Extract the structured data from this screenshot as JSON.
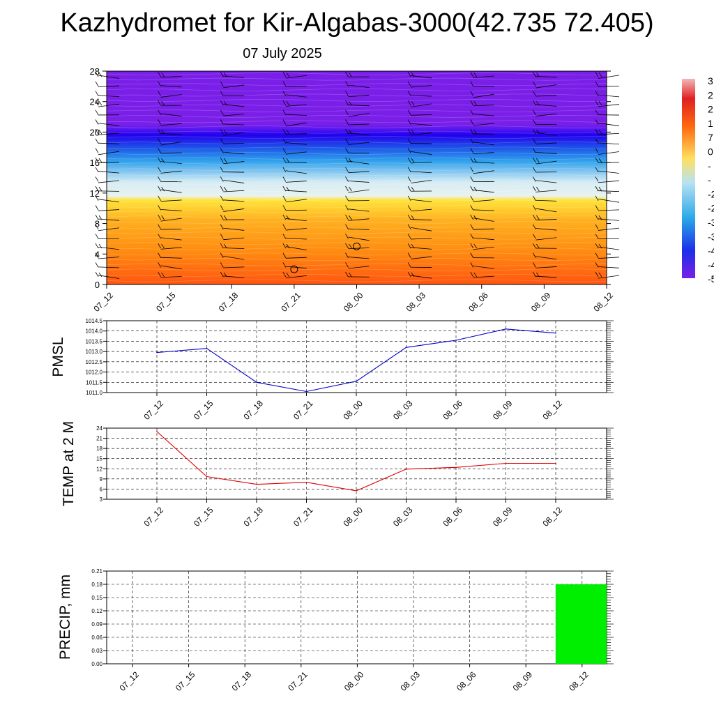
{
  "title": "Kazhydromet for Kir-Algabas-3000(42.735 72.405)",
  "subtitle": "07 July 2025",
  "colors": {
    "pmsl_line": "#0000cc",
    "temp_line": "#dd0000",
    "precip_bar": "#00ee00",
    "grid": "#000000"
  },
  "colorbar_labels": [
    "3",
    "2",
    "2",
    "1",
    "7",
    "0",
    "-",
    "-",
    "-2",
    "-2",
    "-3",
    "-3",
    "-4",
    "-4",
    "-5"
  ],
  "chart_data": [
    {
      "type": "heatmap",
      "title": "",
      "xlabel": "",
      "ylabel": "",
      "x_tick_labels": [
        "07_12",
        "07_15",
        "07_18",
        "07_21",
        "08_00",
        "08_03",
        "08_06",
        "08_09",
        "08_12"
      ],
      "y_tick_labels": [
        "0",
        "4",
        "8",
        "12",
        "16",
        "20",
        "24",
        "28"
      ],
      "ylim": [
        0,
        28
      ],
      "colorscale": [
        "#7a1fe8",
        "#2200ee",
        "#1e6fe8",
        "#2fb2ec",
        "#c8e6f4",
        "#ffe33a",
        "#ffb020",
        "#ff8a10",
        "#ff5510"
      ],
      "annotations": [
        {
          "text": "circle",
          "x": "07_21",
          "y": 2
        },
        {
          "text": "circle",
          "x": "08_00",
          "y": 5
        }
      ]
    },
    {
      "type": "line",
      "title": "",
      "ylabel": "PMSL",
      "categories": [
        "07_12",
        "07_15",
        "07_18",
        "07_21",
        "08_00",
        "08_03",
        "08_06",
        "08_09",
        "08_12"
      ],
      "series": [
        {
          "values": [
            1012.95,
            1013.15,
            1011.5,
            1011.05,
            1011.55,
            1013.2,
            1013.55,
            1014.1,
            1013.9
          ]
        }
      ],
      "ylim": [
        1011.0,
        1014.5
      ],
      "y_tick_labels": [
        "1011.0",
        "1011.5",
        "1012.0",
        "1012.5",
        "1013.0",
        "1013.5",
        "1014.0",
        "1014.5"
      ],
      "grid": true
    },
    {
      "type": "line",
      "title": "",
      "ylabel": "TEMP at 2 M",
      "categories": [
        "07_12",
        "07_15",
        "07_18",
        "07_21",
        "08_00",
        "08_03",
        "08_06",
        "08_09",
        "08_12"
      ],
      "series": [
        {
          "values": [
            23.0,
            9.7,
            7.4,
            8.0,
            5.5,
            11.9,
            12.4,
            13.6,
            13.6
          ]
        }
      ],
      "ylim": [
        3,
        24
      ],
      "y_tick_labels": [
        "3",
        "6",
        "9",
        "12",
        "15",
        "18",
        "21",
        "24"
      ],
      "grid": true
    },
    {
      "type": "bar",
      "title": "",
      "ylabel": "PRECIP, mm",
      "categories": [
        "07_12",
        "07_15",
        "07_18",
        "07_21",
        "08_00",
        "08_03",
        "08_06",
        "08_09",
        "08_12"
      ],
      "values": [
        0,
        0,
        0,
        0,
        0,
        0,
        0,
        0,
        0.18
      ],
      "ylim": [
        0,
        0.21
      ],
      "y_tick_labels": [
        "0.00",
        "0.03",
        "0.06",
        "0.09",
        "0.12",
        "0.15",
        "0.18",
        "0.21"
      ],
      "grid": true
    }
  ]
}
